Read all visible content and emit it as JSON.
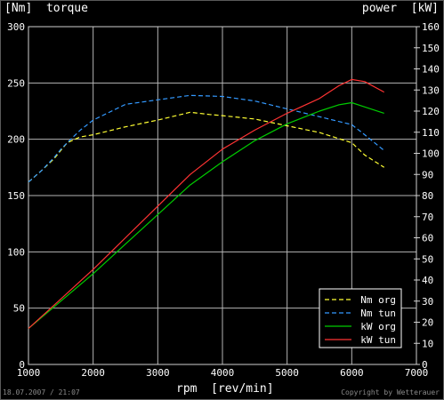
{
  "chart_data": {
    "type": "line",
    "title_left": "[Nm]  torque",
    "title_right": "power  [kW]",
    "xlabel": "rpm  [rev/min]",
    "xlim": [
      1000,
      7000
    ],
    "xticks": [
      "1000",
      "2000",
      "3000",
      "4000",
      "5000",
      "6000",
      "7000"
    ],
    "ylim_left": [
      0,
      300
    ],
    "yticks_left": [
      "0",
      "50",
      "100",
      "150",
      "200",
      "250",
      "300"
    ],
    "ylim_right": [
      0,
      160
    ],
    "yticks_right": [
      "0",
      "10",
      "20",
      "30",
      "40",
      "50",
      "60",
      "70",
      "80",
      "90",
      "100",
      "110",
      "120",
      "130",
      "140",
      "150",
      "160"
    ],
    "grid": true,
    "legend_position": "bottom-right",
    "series": [
      {
        "name": "Nm org",
        "axis": "left",
        "color": "#ffff33",
        "dash": true,
        "x": [
          1000,
          1200,
          1400,
          1500,
          1600,
          1800,
          2000,
          2500,
          3000,
          3500,
          3800,
          4000,
          4500,
          5000,
          5500,
          6000,
          6200,
          6500
        ],
        "y": [
          162,
          172,
          183,
          190,
          197,
          202,
          204,
          211,
          217,
          224,
          222,
          221,
          218,
          212,
          206,
          197,
          186,
          175
        ]
      },
      {
        "name": "Nm tun",
        "axis": "left",
        "color": "#3399ff",
        "dash": true,
        "x": [
          1000,
          1200,
          1400,
          1500,
          1600,
          1800,
          2000,
          2500,
          3000,
          3500,
          4000,
          4500,
          5000,
          5500,
          6000,
          6200,
          6500
        ],
        "y": [
          162,
          172,
          184,
          191,
          197,
          208,
          217,
          231,
          235,
          239,
          238,
          234,
          227,
          220,
          213,
          204,
          190
        ]
      },
      {
        "name": "kW org",
        "axis": "right",
        "color": "#00cc00",
        "dash": false,
        "x": [
          1000,
          1500,
          2000,
          2500,
          3000,
          3500,
          4000,
          4500,
          5000,
          5500,
          5800,
          6000,
          6200,
          6500
        ],
        "y": [
          17,
          30,
          43,
          57,
          71,
          85,
          96,
          106,
          114,
          120,
          123,
          124,
          122,
          119
        ]
      },
      {
        "name": "kW tun",
        "axis": "right",
        "color": "#ff3333",
        "dash": false,
        "x": [
          1000,
          1500,
          2000,
          2500,
          3000,
          3500,
          4000,
          4500,
          5000,
          5500,
          5800,
          6000,
          6200,
          6500
        ],
        "y": [
          17,
          31,
          45,
          60,
          75,
          90,
          102,
          111,
          119,
          126,
          132,
          135,
          134,
          129
        ]
      }
    ]
  },
  "footer": {
    "timestamp": "18.07.2007 / 21:07",
    "copyright": "Copyright by Wetterauer"
  }
}
